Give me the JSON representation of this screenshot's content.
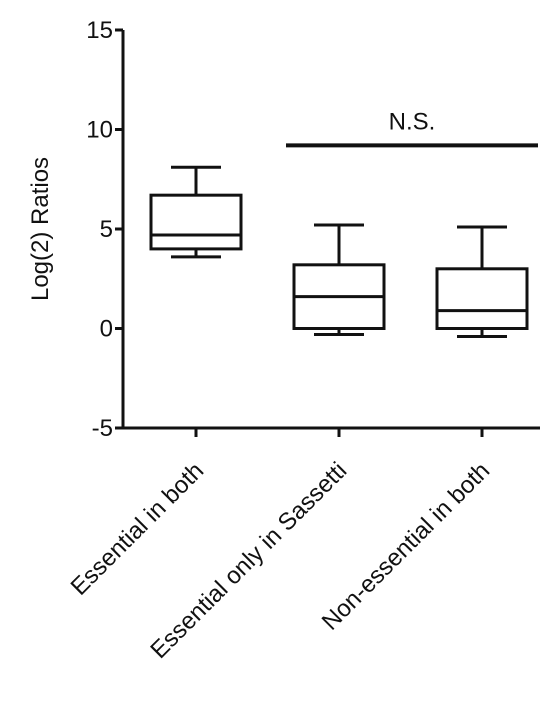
{
  "chart_data": {
    "type": "box",
    "title": "",
    "xlabel": "",
    "ylabel": "Log(2) Ratios",
    "ylim": [
      -5,
      15
    ],
    "yticks": [
      -5,
      0,
      5,
      10,
      15
    ],
    "grid": false,
    "legend": false,
    "categories": [
      "Essential in both",
      "Essential only in Sassetti",
      "Non-essential in both"
    ],
    "boxes": [
      {
        "category": "Essential in both",
        "min": 3.6,
        "q1": 4.0,
        "median": 4.7,
        "q3": 6.7,
        "max": 8.1
      },
      {
        "category": "Essential only in Sassetti",
        "min": -0.3,
        "q1": 0.0,
        "median": 1.6,
        "q3": 3.2,
        "max": 5.2
      },
      {
        "category": "Non-essential in both",
        "min": -0.4,
        "q1": 0.0,
        "median": 0.9,
        "q3": 3.0,
        "max": 5.1
      }
    ],
    "annotations": [
      {
        "text": "N.S.",
        "spans": [
          "Essential only in Sassetti",
          "Non-essential in both"
        ],
        "y": 9.2
      }
    ]
  }
}
